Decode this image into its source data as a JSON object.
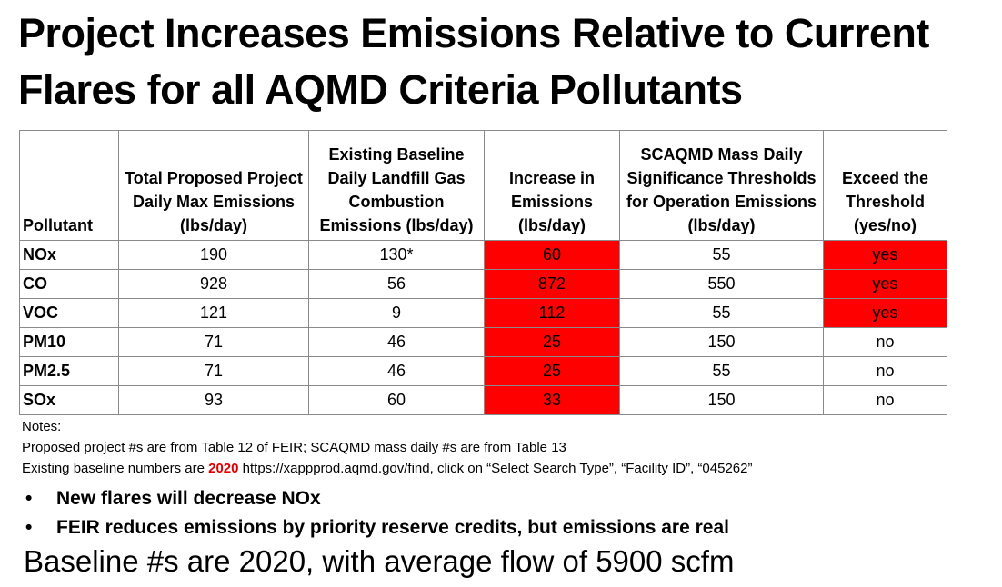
{
  "title": {
    "line1": "Project Increases Emissions Relative to Current",
    "line2": "Flares for all AQMD Criteria Pollutants"
  },
  "table": {
    "headers": [
      {
        "lines": [
          "Pollutant"
        ]
      },
      {
        "lines": [
          "Total Proposed Project",
          "Daily Max Emissions",
          "(lbs/day)"
        ]
      },
      {
        "lines": [
          "Existing Baseline",
          "Daily Landfill Gas",
          "Combustion",
          "Emissions (lbs/day)"
        ]
      },
      {
        "lines": [
          "Increase in",
          "Emissions",
          "(lbs/day)"
        ]
      },
      {
        "lines": [
          "SCAQMD Mass Daily",
          "Significance Thresholds",
          "for Operation Emissions",
          "(lbs/day)"
        ]
      },
      {
        "lines": [
          "Exceed the",
          "Threshold",
          "(yes/no)"
        ]
      }
    ],
    "rows": [
      {
        "pollutant": "NOx",
        "proposed": "190",
        "baseline": "130*",
        "increase": "60",
        "threshold": "55",
        "exceed": "yes"
      },
      {
        "pollutant": "CO",
        "proposed": "928",
        "baseline": "56",
        "increase": "872",
        "threshold": "550",
        "exceed": "yes"
      },
      {
        "pollutant": "VOC",
        "proposed": "121",
        "baseline": "9",
        "increase": "112",
        "threshold": "55",
        "exceed": "yes"
      },
      {
        "pollutant": "PM10",
        "proposed": "71",
        "baseline": "46",
        "increase": "25",
        "threshold": "150",
        "exceed": "no"
      },
      {
        "pollutant": "PM2.5",
        "proposed": "71",
        "baseline": "46",
        "increase": "25",
        "threshold": "55",
        "exceed": "no"
      },
      {
        "pollutant": "SOx",
        "proposed": "93",
        "baseline": "60",
        "increase": "33",
        "threshold": "150",
        "exceed": "no"
      }
    ]
  },
  "notes": {
    "label": "Notes:",
    "line1": "Proposed project #s are from Table 12 of FEIR; SCAQMD mass daily #s are from Table 13",
    "line2_prefix": "Existing baseline numbers are ",
    "line2_year": "2020",
    "line2_suffix": "  https://xappprod.aqmd.gov/find, click on “Select Search Type”,  “Facility ID”, “045262”"
  },
  "bullets": [
    "New flares will decrease NOx",
    "FEIR reduces emissions by priority reserve credits, but emissions are real"
  ],
  "bullet_symbol": "•",
  "baseline_text": "Baseline #s are 2020, with average flow of 5900 scfm",
  "colors": {
    "highlight": "#ff0000",
    "year_red": "#e00000",
    "border": "#8a8a8a"
  }
}
